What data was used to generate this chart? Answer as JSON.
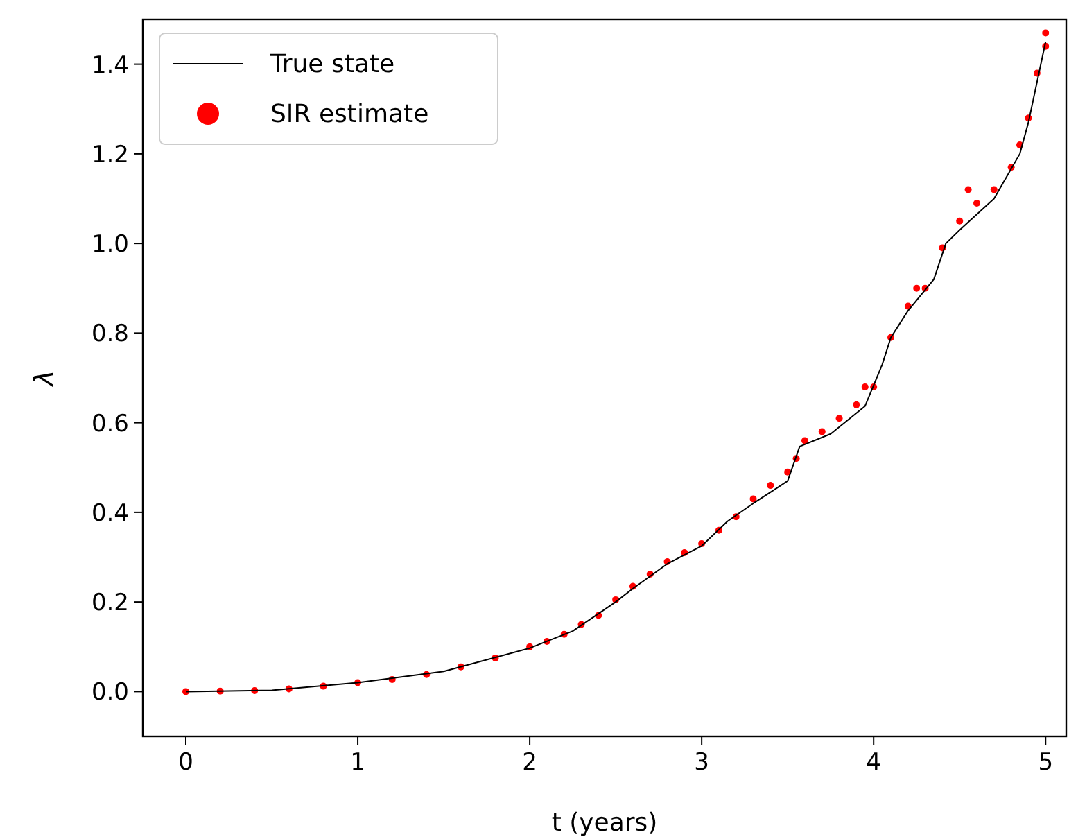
{
  "chart_data": {
    "type": "line",
    "xlabel": "t (years)",
    "ylabel": "λ",
    "xlim": [
      -0.25,
      5.12
    ],
    "ylim": [
      -0.1,
      1.5
    ],
    "xticks": [
      0,
      1,
      2,
      3,
      4,
      5
    ],
    "yticks": [
      {
        "value": 0,
        "label": "0.0"
      },
      {
        "value": 0.2,
        "label": "0.2"
      },
      {
        "value": 0.4,
        "label": "0.4"
      },
      {
        "value": 0.6,
        "label": "0.6"
      },
      {
        "value": 0.8,
        "label": "0.8"
      },
      {
        "value": 1,
        "label": "1.0"
      },
      {
        "value": 1.2,
        "label": "1.2"
      },
      {
        "value": 1.4,
        "label": "1.4"
      }
    ],
    "grid": false,
    "legend": "top left",
    "series": [
      {
        "name": "SIR estimate",
        "type": "scatter",
        "marker": "circle",
        "color": "#ff0000",
        "x": [
          0,
          0.2,
          0.4,
          0.6,
          0.8,
          1.0,
          1.2,
          1.4,
          1.6,
          1.8,
          2.0,
          2.1,
          2.2,
          2.3,
          2.4,
          2.5,
          2.6,
          2.7,
          2.8,
          2.9,
          3.0,
          3.1,
          3.2,
          3.3,
          3.4,
          3.5,
          3.55,
          3.6,
          3.7,
          3.8,
          3.9,
          3.95,
          4.0,
          4.1,
          4.2,
          4.25,
          4.3,
          4.4,
          4.5,
          4.55,
          4.6,
          4.7,
          4.8,
          4.85,
          4.9,
          4.95,
          5.0,
          5.0
        ],
        "values": [
          0,
          0.001,
          0.002,
          0.006,
          0.012,
          0.02,
          0.027,
          0.038,
          0.055,
          0.075,
          0.1,
          0.112,
          0.128,
          0.15,
          0.17,
          0.205,
          0.235,
          0.262,
          0.29,
          0.31,
          0.33,
          0.36,
          0.39,
          0.43,
          0.46,
          0.49,
          0.52,
          0.56,
          0.58,
          0.61,
          0.64,
          0.68,
          0.68,
          0.79,
          0.86,
          0.9,
          0.9,
          0.99,
          1.05,
          1.12,
          1.09,
          1.12,
          1.17,
          1.22,
          1.28,
          1.38,
          1.44,
          1.47
        ]
      },
      {
        "name": "True state",
        "color": "#000000",
        "line_style": "solid",
        "marker": "none",
        "x": [
          0,
          0.5,
          1,
          1.5,
          2,
          2.25,
          2.5,
          2.6,
          2.8,
          3,
          3.15,
          3.3,
          3.4,
          3.5,
          3.57,
          3.75,
          3.95,
          4.05,
          4.1,
          4.2,
          4.35,
          4.42,
          4.5,
          4.7,
          4.85,
          4.9,
          5
        ],
        "values": [
          0,
          0.003,
          0.02,
          0.045,
          0.097,
          0.135,
          0.2,
          0.23,
          0.285,
          0.325,
          0.38,
          0.42,
          0.445,
          0.47,
          0.547,
          0.575,
          0.637,
          0.73,
          0.79,
          0.85,
          0.92,
          1.0,
          1.03,
          1.1,
          1.2,
          1.27,
          1.45
        ]
      }
    ]
  }
}
